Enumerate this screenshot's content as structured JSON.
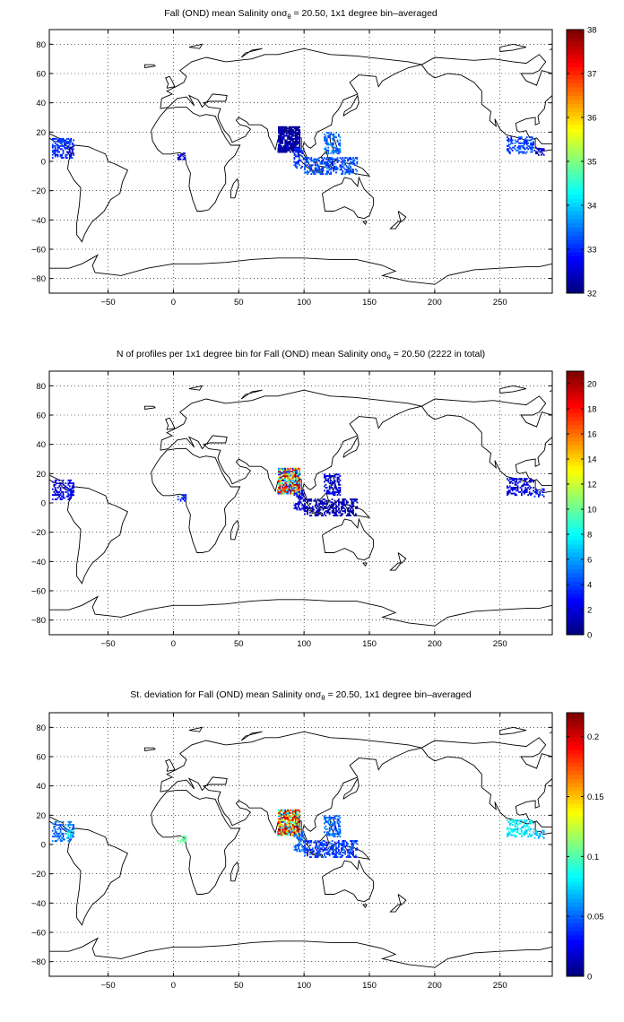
{
  "chart_data": [
    {
      "type": "heatmap",
      "title_parts": {
        "prefix": "Fall (OND) mean Salinity on",
        "sigma": "σ",
        "theta": "θ",
        "suffix": " = 20.50, 1x1 degree bin–averaged"
      },
      "xlim": [
        -95,
        290
      ],
      "ylim": [
        -90,
        90
      ],
      "xticks": [
        -50,
        0,
        50,
        100,
        150,
        200,
        250
      ],
      "yticks": [
        -80,
        -60,
        -40,
        -20,
        0,
        20,
        40,
        60,
        80
      ],
      "grid": true,
      "colormap": "jet",
      "colorbar": {
        "min": 32,
        "max": 38,
        "ticks": [
          32,
          33,
          34,
          35,
          36,
          37,
          38
        ]
      },
      "clusters": [
        {
          "region": "Bay of Bengal",
          "lon": [
            80,
            96
          ],
          "lat": [
            6,
            23
          ],
          "value": 32.2
        },
        {
          "region": "Andaman Sea",
          "lon": [
            92,
            99
          ],
          "lat": [
            -5,
            8
          ],
          "value": 33.0
        },
        {
          "region": "South China Sea / Philippines",
          "lon": [
            115,
            127
          ],
          "lat": [
            5,
            19
          ],
          "value": 33.4
        },
        {
          "region": "Indonesian seas",
          "lon": [
            100,
            140
          ],
          "lat": [
            -9,
            2
          ],
          "value": 33.2
        },
        {
          "region": "Eastern Tropical Pacific",
          "lon": [
            -93,
            -77
          ],
          "lat": [
            2,
            15
          ],
          "value": 33.0
        },
        {
          "region": "Gulf of Panama",
          "lon": [
            -82,
            -78
          ],
          "lat": [
            4,
            9
          ],
          "value": 32.3
        },
        {
          "region": "Gulf of Guinea",
          "lon": [
            3,
            9
          ],
          "lat": [
            1,
            5
          ],
          "value": 32.4
        },
        {
          "region": "Caribbean",
          "lon": [
            255,
            275
          ],
          "lat": [
            5,
            16
          ],
          "value": 33.1
        },
        {
          "region": "Panama Bight",
          "lon": [
            276,
            283
          ],
          "lat": [
            4,
            9
          ],
          "value": 32.4
        }
      ]
    },
    {
      "type": "heatmap",
      "title_parts": {
        "prefix": "N of profiles per 1x1 degree bin for Fall (OND) mean Salinity on",
        "sigma": "σ",
        "theta": "θ",
        "suffix": " = 20.50 (2222 in total)"
      },
      "xlim": [
        -95,
        290
      ],
      "ylim": [
        -90,
        90
      ],
      "xticks": [
        -50,
        0,
        50,
        100,
        150,
        200,
        250
      ],
      "yticks": [
        -80,
        -60,
        -40,
        -20,
        0,
        20,
        40,
        60,
        80
      ],
      "grid": true,
      "colormap": "jet",
      "total_profiles": 2222,
      "colorbar": {
        "min": 0,
        "max": 21,
        "ticks": [
          0,
          2,
          4,
          6,
          8,
          10,
          12,
          14,
          16,
          18,
          20
        ]
      },
      "clusters": [
        {
          "region": "Bay of Bengal",
          "lon": [
            80,
            96
          ],
          "lat": [
            6,
            23
          ],
          "value": 10
        },
        {
          "region": "Andaman Sea",
          "lon": [
            92,
            99
          ],
          "lat": [
            -5,
            8
          ],
          "value": 2
        },
        {
          "region": "South China Sea / Philippines",
          "lon": [
            115,
            127
          ],
          "lat": [
            5,
            19
          ],
          "value": 2
        },
        {
          "region": "Indonesian seas",
          "lon": [
            100,
            140
          ],
          "lat": [
            -9,
            2
          ],
          "value": 1
        },
        {
          "region": "Eastern Tropical Pacific",
          "lon": [
            -93,
            -77
          ],
          "lat": [
            2,
            15
          ],
          "value": 2
        },
        {
          "region": "Gulf of Panama",
          "lon": [
            -82,
            -78
          ],
          "lat": [
            4,
            9
          ],
          "value": 3
        },
        {
          "region": "Gulf of Guinea",
          "lon": [
            3,
            9
          ],
          "lat": [
            1,
            5
          ],
          "value": 3
        },
        {
          "region": "Caribbean",
          "lon": [
            255,
            275
          ],
          "lat": [
            5,
            16
          ],
          "value": 2
        },
        {
          "region": "Panama Bight",
          "lon": [
            276,
            283
          ],
          "lat": [
            4,
            9
          ],
          "value": 3
        }
      ]
    },
    {
      "type": "heatmap",
      "title_parts": {
        "prefix": "St. deviation for Fall (OND) mean Salinity on",
        "sigma": "σ",
        "theta": "θ",
        "suffix": " = 20.50, 1x1 degree bin–averaged"
      },
      "xlim": [
        -95,
        290
      ],
      "ylim": [
        -90,
        90
      ],
      "xticks": [
        -50,
        0,
        50,
        100,
        150,
        200,
        250
      ],
      "yticks": [
        -80,
        -60,
        -40,
        -20,
        0,
        20,
        40,
        60,
        80
      ],
      "grid": true,
      "colormap": "jet",
      "colorbar": {
        "min": 0,
        "max": 0.22,
        "ticks": [
          0,
          0.05,
          0.1,
          0.15,
          0.2
        ]
      },
      "clusters": [
        {
          "region": "Bay of Bengal",
          "lon": [
            80,
            96
          ],
          "lat": [
            6,
            23
          ],
          "value": 0.14
        },
        {
          "region": "Andaman Sea",
          "lon": [
            92,
            99
          ],
          "lat": [
            -5,
            8
          ],
          "value": 0.05
        },
        {
          "region": "South China Sea / Philippines",
          "lon": [
            115,
            127
          ],
          "lat": [
            5,
            19
          ],
          "value": 0.05
        },
        {
          "region": "Indonesian seas",
          "lon": [
            100,
            140
          ],
          "lat": [
            -9,
            2
          ],
          "value": 0.04
        },
        {
          "region": "Eastern Tropical Pacific",
          "lon": [
            -93,
            -77
          ],
          "lat": [
            2,
            15
          ],
          "value": 0.05
        },
        {
          "region": "Gulf of Panama",
          "lon": [
            -82,
            -78
          ],
          "lat": [
            4,
            9
          ],
          "value": 0.08
        },
        {
          "region": "Gulf of Guinea",
          "lon": [
            3,
            9
          ],
          "lat": [
            1,
            5
          ],
          "value": 0.1
        },
        {
          "region": "Caribbean",
          "lon": [
            255,
            275
          ],
          "lat": [
            5,
            16
          ],
          "value": 0.08
        },
        {
          "region": "Panama Bight",
          "lon": [
            276,
            283
          ],
          "lat": [
            4,
            9
          ],
          "value": 0.07
        }
      ]
    }
  ]
}
